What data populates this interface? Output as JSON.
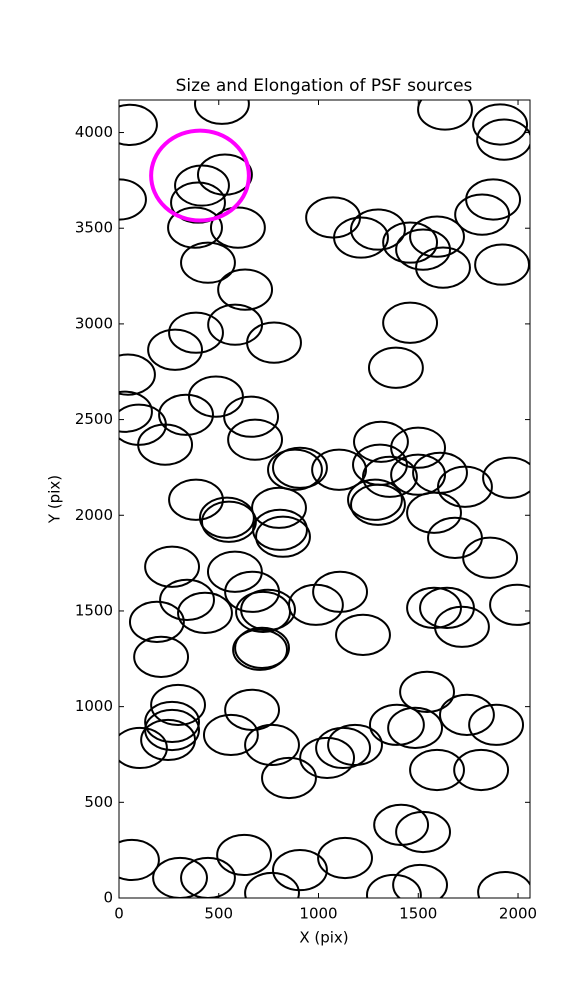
{
  "chart_data": {
    "type": "ellipse",
    "title": "Size and Elongation of PSF sources",
    "xlabel": "X (pix)",
    "ylabel": "Y (pix)",
    "x": [
      55,
      516,
      0,
      531,
      416,
      396,
      381,
      596,
      446,
      632,
      582,
      386,
      281,
      777,
      45,
      30,
      100,
      231,
      336,
      486,
      662,
      682,
      386,
      541,
      551,
      802,
      807,
      822,
      882,
      907,
      1103,
      1073,
      1213,
      1298,
      1459,
      1594,
      1524,
      1624,
      1634,
      1910,
      1930,
      1875,
      1820,
      1920,
      1459,
      1388,
      1313,
      1499,
      1308,
      1358,
      1283,
      1298,
      1499,
      1609,
      1734,
      1960,
      1579,
      1684,
      1860,
      266,
      341,
      431,
      581,
      667,
      747,
      722,
      987,
      1108,
      1223,
      717,
      707,
      190,
      211,
      1579,
      1644,
      1719,
      1995,
      296,
      266,
      266,
      246,
      105,
      561,
      667,
      767,
      852,
      1043,
      1123,
      1183,
      1393,
      1484,
      1544,
      1744,
      1890,
      1594,
      1815,
      1414,
      1524,
      627,
      446,
      306,
      65,
      907,
      767,
      1133,
      1378,
      1509,
      1935
    ],
    "y": [
      4040,
      4150,
      3650,
      3780,
      3723,
      3634,
      3503,
      3503,
      3320,
      3179,
      2996,
      2954,
      2865,
      2902,
      2735,
      2541,
      2473,
      2369,
      2525,
      2620,
      2515,
      2395,
      2081,
      1987,
      1966,
      2039,
      1924,
      1888,
      2238,
      2248,
      2238,
      3556,
      3451,
      3493,
      3425,
      3456,
      3388,
      3294,
      4120,
      4042,
      3963,
      3650,
      3571,
      3310,
      3006,
      2771,
      2384,
      2353,
      2264,
      2201,
      2081,
      2055,
      2212,
      2222,
      2149,
      2196,
      2013,
      1882,
      1778,
      1731,
      1558,
      1490,
      1705,
      1600,
      1506,
      1495,
      1532,
      1600,
      1375,
      1307,
      1297,
      1443,
      1260,
      1516,
      1516,
      1417,
      1532,
      1009,
      920,
      878,
      826,
      784,
      852,
      983,
      800,
      627,
      732,
      784,
      800,
      905,
      889,
      1077,
      957,
      905,
      669,
      669,
      382,
      345,
      225,
      105,
      105,
      199,
      146,
      26,
      209,
      16,
      68,
      31
    ],
    "width": 270,
    "height": 210,
    "color": "#000000",
    "highlight": {
      "x": 406,
      "y": 3775,
      "width": 490,
      "height": 470,
      "color": "#ff00ff"
    },
    "xlim": [
      0,
      2060
    ],
    "ylim": [
      0,
      4170
    ],
    "xticks": [
      0,
      500,
      1000,
      1500,
      2000
    ],
    "yticks": [
      0,
      500,
      1000,
      1500,
      2000,
      2500,
      3000,
      3500,
      4000
    ]
  }
}
